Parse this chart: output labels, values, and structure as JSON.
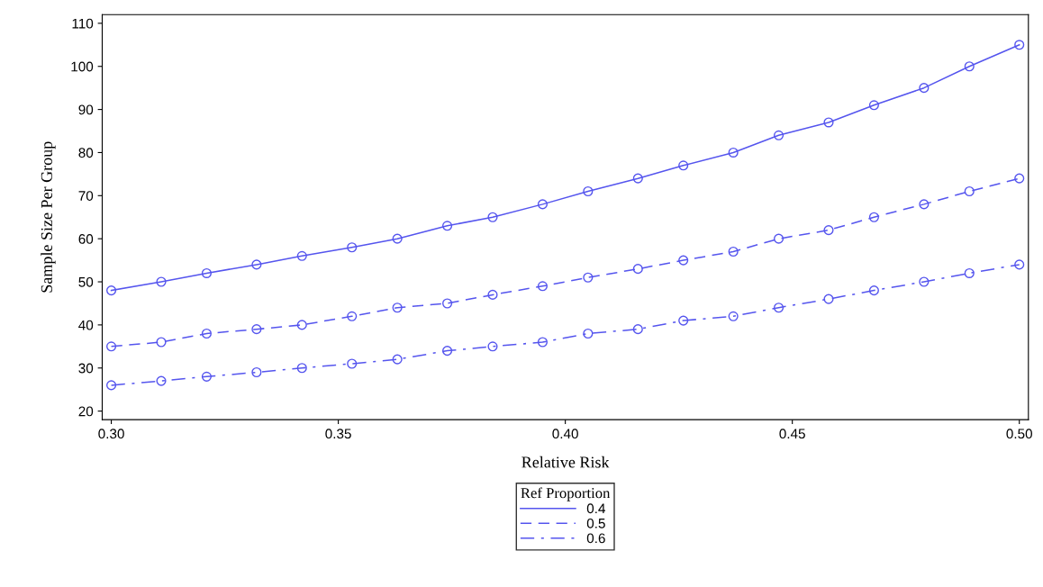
{
  "chart_data": {
    "type": "line",
    "xlabel": "Relative Risk",
    "ylabel": "Sample Size Per Group",
    "legend_title": "Ref Proportion",
    "legend": "bottom",
    "marker": "circle",
    "grid": false,
    "x": [
      0.3,
      0.311,
      0.321,
      0.332,
      0.342,
      0.353,
      0.363,
      0.374,
      0.384,
      0.395,
      0.405,
      0.416,
      0.426,
      0.437,
      0.447,
      0.458,
      0.468,
      0.479,
      0.489,
      0.5
    ],
    "xlim": [
      0.298,
      0.502
    ],
    "xticks": [
      {
        "value": 0.3,
        "label": "0.30"
      },
      0.35,
      {
        "value": 0.4,
        "label": "0.40"
      },
      0.45,
      {
        "value": 0.5,
        "label": "0.50"
      }
    ],
    "ylim": [
      18,
      112
    ],
    "yticks": [
      20,
      30,
      40,
      50,
      60,
      70,
      80,
      90,
      100,
      110
    ],
    "series": [
      {
        "name": "0.4",
        "color": "#5555ee",
        "line_style": "solid",
        "values": [
          48,
          50,
          52,
          54,
          56,
          58,
          60,
          63,
          65,
          68,
          71,
          74,
          77,
          80,
          84,
          87,
          91,
          95,
          100,
          105
        ]
      },
      {
        "name": "0.5",
        "color": "#5555ee",
        "line_style": "dashed",
        "values": [
          35,
          36,
          38,
          39,
          40,
          42,
          44,
          45,
          47,
          49,
          51,
          53,
          55,
          57,
          60,
          62,
          65,
          68,
          71,
          74
        ]
      },
      {
        "name": "0.6",
        "color": "#5555ee",
        "line_style": "dashdot",
        "values": [
          26,
          27,
          28,
          29,
          30,
          31,
          32,
          34,
          35,
          36,
          38,
          39,
          41,
          42,
          44,
          46,
          48,
          50,
          52,
          54
        ]
      }
    ]
  }
}
